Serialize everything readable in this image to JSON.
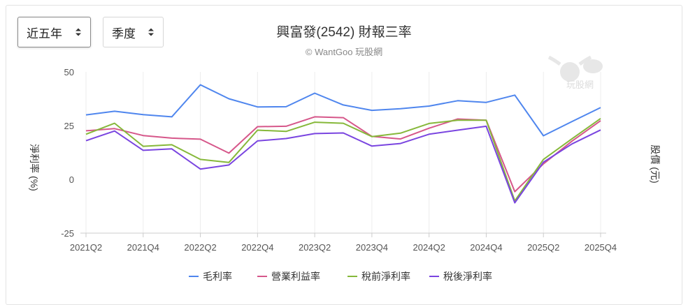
{
  "controls": {
    "range": "近五年",
    "period": "季度"
  },
  "watermark": "玩股網",
  "chart_data": {
    "type": "line",
    "title": "興富發(2542) 財報三率",
    "subtitle": "© WantGoo 玩股網",
    "ylabel": "淨利率 (%)",
    "y2label": "股價 (元)",
    "ylim": [
      -25,
      50
    ],
    "yticks": [
      50,
      25,
      0,
      -25
    ],
    "grid": "vertical",
    "legend": "bottom",
    "x": [
      "2021Q2",
      "2021Q3",
      "2021Q4",
      "2022Q1",
      "2022Q2",
      "2022Q3",
      "2022Q4",
      "2023Q1",
      "2023Q2",
      "2023Q3",
      "2023Q4",
      "2024Q1",
      "2024Q2",
      "2024Q3",
      "2024Q4",
      "2025Q1",
      "2025Q2",
      "2025Q3",
      "2025Q4"
    ],
    "xticklabels": [
      "2021Q2",
      "2021Q4",
      "2022Q2",
      "2022Q4",
      "2023Q2",
      "2023Q4",
      "2024Q2",
      "2024Q4",
      "2025Q2",
      "2025Q4"
    ],
    "series": [
      {
        "name": "毛利率",
        "color": "#4f86ee",
        "values": [
          30.0,
          31.7,
          30.1,
          29.1,
          44.0,
          37.5,
          33.7,
          33.8,
          40.1,
          34.6,
          32.1,
          32.9,
          34.1,
          36.6,
          35.8,
          39.2,
          20.3,
          26.9,
          33.4
        ]
      },
      {
        "name": "營業利益率",
        "color": "#d6578a",
        "values": [
          22.6,
          23.6,
          20.4,
          19.2,
          18.7,
          12.2,
          24.5,
          24.7,
          29.1,
          28.7,
          20.0,
          18.8,
          23.8,
          28.1,
          27.5,
          -5.7,
          7.2,
          17.8,
          27.3
        ]
      },
      {
        "name": "稅前淨利率",
        "color": "#86b83a",
        "values": [
          21.0,
          26.1,
          15.4,
          16.1,
          9.3,
          7.9,
          22.9,
          22.3,
          26.6,
          26.1,
          19.9,
          21.5,
          26.0,
          27.5,
          27.5,
          -10.0,
          9.3,
          18.9,
          28.3
        ]
      },
      {
        "name": "稅後淨利率",
        "color": "#7a45e0",
        "values": [
          18.0,
          22.5,
          13.5,
          14.2,
          4.8,
          6.7,
          17.9,
          19.0,
          21.3,
          21.6,
          15.5,
          16.7,
          21.0,
          22.9,
          24.7,
          -10.9,
          8.0,
          16.5,
          23.0
        ]
      }
    ]
  }
}
